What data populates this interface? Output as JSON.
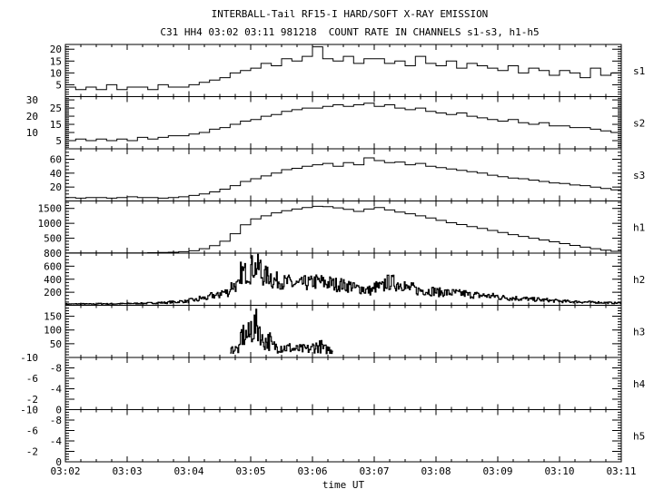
{
  "chart_data": {
    "type": "line",
    "title": "INTERBALL-Tail RF15-I HARD/SOFT X-RAY EMISSION",
    "subtitle": "C31 HH4 03:02 03:11 981218  COUNT RATE IN CHANNELS s1-s3, h1-h5",
    "xlabel": "time UT",
    "x_ticks": [
      "03:02",
      "03:03",
      "03:04",
      "03:05",
      "03:06",
      "03:07",
      "03:08",
      "03:09",
      "03:10",
      "03:11"
    ],
    "x_range_seconds": [
      0,
      540
    ],
    "bin_seconds": 10,
    "panels": [
      {
        "name": "s1",
        "ylim": [
          0,
          22
        ],
        "ticks": [
          5,
          10,
          15,
          20
        ],
        "minor": 1,
        "noise": 0,
        "values": [
          4,
          3,
          4,
          3,
          5,
          3,
          4,
          4,
          3,
          5,
          4,
          4,
          5,
          6,
          7,
          8,
          10,
          11,
          12,
          14,
          13,
          16,
          15,
          17,
          21,
          16,
          15,
          17,
          14,
          16,
          16,
          14,
          15,
          13,
          17,
          14,
          13,
          15,
          12,
          14,
          13,
          12,
          11,
          13,
          10,
          12,
          11,
          9,
          11,
          10,
          8,
          12,
          9,
          10
        ]
      },
      {
        "name": "s2",
        "ylim": [
          0,
          32
        ],
        "ticks": [
          5,
          10,
          15,
          20,
          25,
          30
        ],
        "minor": 1,
        "noise": 0,
        "values": [
          5,
          6,
          5,
          6,
          5,
          6,
          5,
          7,
          6,
          7,
          8,
          8,
          9,
          10,
          12,
          13,
          15,
          17,
          18,
          20,
          21,
          23,
          24,
          25,
          25,
          26,
          27,
          26,
          27,
          28,
          26,
          27,
          25,
          24,
          25,
          23,
          22,
          21,
          22,
          20,
          19,
          18,
          17,
          18,
          16,
          15,
          16,
          14,
          14,
          13,
          13,
          12,
          11,
          10
        ]
      },
      {
        "name": "s3",
        "ylim": [
          0,
          75
        ],
        "ticks": [
          20,
          40,
          60
        ],
        "minor": 5,
        "noise": 0,
        "values": [
          5,
          4,
          5,
          5,
          4,
          5,
          6,
          5,
          5,
          4,
          5,
          6,
          8,
          10,
          13,
          17,
          22,
          28,
          32,
          36,
          40,
          45,
          47,
          50,
          52,
          54,
          50,
          55,
          52,
          62,
          58,
          55,
          56,
          52,
          54,
          50,
          48,
          46,
          44,
          42,
          40,
          37,
          35,
          33,
          32,
          30,
          28,
          26,
          25,
          23,
          22,
          20,
          18,
          16
        ]
      },
      {
        "name": "h1",
        "ylim": [
          0,
          1750
        ],
        "ticks": [
          500,
          1000,
          1500
        ],
        "minor": 100,
        "noise": 0,
        "values": [
          5,
          5,
          5,
          5,
          5,
          5,
          8,
          10,
          15,
          20,
          30,
          50,
          80,
          150,
          250,
          400,
          650,
          950,
          1150,
          1250,
          1350,
          1420,
          1480,
          1530,
          1570,
          1560,
          1520,
          1470,
          1400,
          1480,
          1530,
          1450,
          1380,
          1320,
          1250,
          1180,
          1100,
          1020,
          960,
          890,
          830,
          760,
          690,
          620,
          560,
          500,
          440,
          380,
          320,
          260,
          200,
          150,
          100,
          60
        ]
      },
      {
        "name": "h2",
        "ylim": [
          0,
          800
        ],
        "ticks": [
          200,
          400,
          600,
          800
        ],
        "minor": 50,
        "noise": 0.35,
        "values": [
          20,
          22,
          20,
          25,
          22,
          25,
          28,
          30,
          35,
          40,
          50,
          60,
          80,
          110,
          150,
          200,
          300,
          500,
          580,
          450,
          380,
          350,
          320,
          340,
          360,
          340,
          320,
          300,
          260,
          230,
          280,
          350,
          330,
          260,
          230,
          220,
          200,
          190,
          180,
          160,
          150,
          140,
          120,
          110,
          100,
          90,
          80,
          70,
          60,
          55,
          50,
          45,
          40,
          35
        ]
      },
      {
        "name": "h3",
        "ylim": [
          0,
          190
        ],
        "ticks": [
          50,
          100,
          150
        ],
        "minor": 10,
        "noise": 0.6,
        "values": [
          null,
          null,
          null,
          null,
          null,
          null,
          null,
          null,
          null,
          null,
          null,
          null,
          null,
          null,
          null,
          null,
          30,
          80,
          110,
          60,
          40,
          35,
          30,
          30,
          40,
          30,
          null,
          null,
          null,
          null,
          null,
          null,
          null,
          null,
          null,
          null,
          null,
          null,
          null,
          null,
          null,
          null,
          null,
          null,
          null,
          null,
          null,
          null,
          null,
          null,
          null,
          null,
          null,
          null
        ]
      },
      {
        "name": "h4",
        "ylim": [
          0,
          -10
        ],
        "ticks": [
          -10,
          -8,
          -6,
          -4,
          -2,
          0
        ],
        "minor": 0.5,
        "noise": 0,
        "values": []
      },
      {
        "name": "h5",
        "ylim": [
          0,
          -10
        ],
        "ticks": [
          -10,
          -8,
          -6,
          -4,
          -2,
          0
        ],
        "minor": 0.5,
        "noise": 0,
        "values": []
      }
    ]
  }
}
